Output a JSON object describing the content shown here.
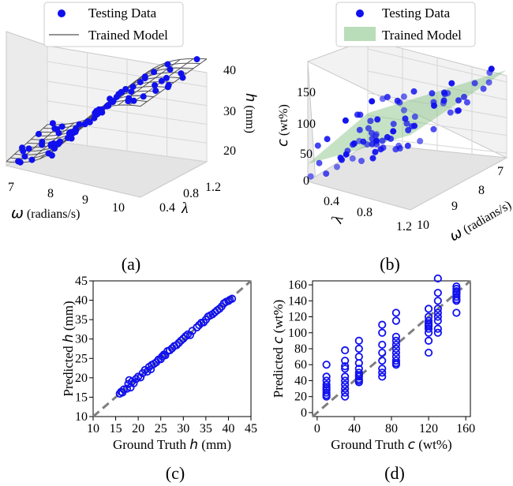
{
  "colors": {
    "points": "#1010ee",
    "model_line": "#555555",
    "model_surface": "#7fbf7f",
    "diagonal": "#7f7f7f",
    "pane": "#f2f2f2",
    "grid": "#d6d6d6"
  },
  "captions": [
    "(a)",
    "(b)",
    "(c)",
    "(d)"
  ],
  "chart_data": [
    {
      "id": "a",
      "type": "scatter",
      "projection": "3d",
      "legend": [
        "Testing Data",
        "Trained Model"
      ],
      "legend_placement": "top",
      "x_axis": {
        "symbol": "ω",
        "unit": " (radians/s)",
        "ticks": [
          "7",
          "8",
          "9",
          "10"
        ],
        "range": [
          7,
          10.5
        ]
      },
      "y_axis": {
        "symbol": "λ",
        "ticks": [
          "0.4",
          "0.8",
          "1.2"
        ],
        "range": [
          0.3,
          1.3
        ]
      },
      "z_axis": {
        "symbol": "h",
        "unit": " (mm)",
        "ticks": [
          "20",
          "30",
          "40"
        ],
        "range": [
          15,
          45
        ]
      },
      "grid": true,
      "model": "wireframe surface",
      "points_count": 80
    },
    {
      "id": "b",
      "type": "scatter",
      "projection": "3d",
      "legend": [
        "Testing Data",
        "Trained Model"
      ],
      "legend_placement": "top",
      "x_axis": {
        "symbol": "ω",
        "unit": " (radians/s)",
        "ticks": [
          "7",
          "8",
          "9",
          "10"
        ],
        "range": [
          6.5,
          10.5
        ]
      },
      "y_axis": {
        "symbol": "λ",
        "ticks": [
          "0.4",
          "0.8",
          "1.2"
        ],
        "range": [
          0.3,
          1.3
        ]
      },
      "z_axis": {
        "symbol": "c",
        "unit": " (wt%)",
        "ticks": [
          "0",
          "50",
          "100",
          "150"
        ],
        "range": [
          0,
          170
        ]
      },
      "grid": true,
      "model": "shaded surface",
      "points_count": 80
    },
    {
      "id": "c",
      "type": "scatter",
      "xlabel_prefix": "Ground Truth ",
      "xlabel_symbol": "h",
      "xlabel_unit": " (mm)",
      "ylabel_prefix": "Predicted ",
      "ylabel_symbol": "h",
      "ylabel_unit": " (mm)",
      "xlim": [
        10,
        45
      ],
      "ylim": [
        10,
        45
      ],
      "xticks": [
        10,
        15,
        20,
        25,
        30,
        35,
        40,
        45
      ],
      "yticks": [
        10,
        15,
        20,
        25,
        30,
        35,
        40,
        45
      ],
      "diagonal": true,
      "x": [
        15.9,
        16.2,
        16.5,
        16.8,
        17.5,
        17.8,
        18.0,
        18.3,
        18.6,
        19.0,
        19.5,
        20.0,
        20.5,
        21.0,
        21.5,
        22.0,
        22.4,
        22.8,
        23.0,
        23.5,
        24.0,
        24.5,
        25.0,
        25.3,
        25.7,
        26.0,
        26.5,
        27.0,
        27.5,
        28.0,
        28.5,
        29.0,
        29.5,
        30.0,
        30.5,
        31.0,
        31.5,
        32.0,
        33.0,
        33.5,
        34.0,
        34.5,
        35.0,
        35.5,
        36.0,
        36.5,
        37.0,
        37.5,
        38.0,
        38.5,
        39.0,
        39.5,
        40.0,
        40.3,
        40.8
      ],
      "y": [
        15.9,
        16.4,
        16.2,
        17.0,
        17.2,
        18.4,
        19.4,
        17.5,
        19.0,
        18.6,
        19.7,
        20.3,
        20.1,
        21.2,
        22.0,
        21.6,
        22.8,
        22.2,
        23.3,
        23.6,
        24.0,
        24.7,
        24.8,
        25.5,
        26.0,
        25.8,
        26.9,
        27.1,
        27.6,
        28.2,
        28.4,
        29.0,
        29.6,
        30.1,
        30.7,
        31.2,
        31.0,
        32.1,
        33.0,
        33.6,
        34.2,
        34.3,
        35.0,
        35.8,
        36.1,
        36.4,
        36.9,
        37.4,
        37.8,
        38.4,
        39.2,
        39.6,
        39.8,
        40.1,
        40.4
      ]
    },
    {
      "id": "d",
      "type": "scatter",
      "xlabel_prefix": "Ground Truth ",
      "xlabel_symbol": "c",
      "xlabel_unit": " (wt%)",
      "ylabel_prefix": "Predicted ",
      "ylabel_symbol": "c",
      "ylabel_unit": " (wt%)",
      "xlim": [
        -5,
        165
      ],
      "ylim": [
        -5,
        165
      ],
      "xticks": [
        0,
        40,
        80,
        120,
        160
      ],
      "yticks": [
        0,
        20,
        40,
        60,
        80,
        100,
        120,
        140,
        160
      ],
      "diagonal": true,
      "x": [
        10,
        10,
        10,
        10,
        10,
        10,
        10,
        10,
        10,
        10,
        30,
        30,
        30,
        30,
        30,
        30,
        30,
        30,
        30,
        30,
        45,
        45,
        45,
        45,
        45,
        45,
        45,
        45,
        45,
        45,
        45,
        70,
        70,
        70,
        70,
        70,
        70,
        70,
        70,
        85,
        85,
        85,
        85,
        85,
        85,
        85,
        85,
        85,
        85,
        85,
        120,
        120,
        120,
        120,
        120,
        120,
        120,
        120,
        120,
        120,
        130,
        130,
        130,
        130,
        130,
        130,
        130,
        130,
        130,
        150,
        150,
        150,
        150,
        150,
        150,
        150,
        150,
        150
      ],
      "y": [
        60,
        45,
        40,
        35,
        32,
        30,
        28,
        25,
        22,
        20,
        78,
        65,
        58,
        55,
        45,
        40,
        35,
        30,
        25,
        20,
        90,
        80,
        70,
        62,
        55,
        50,
        47,
        45,
        42,
        40,
        38,
        110,
        100,
        85,
        75,
        65,
        55,
        50,
        45,
        125,
        115,
        95,
        90,
        85,
        80,
        75,
        70,
        65,
        62,
        60,
        130,
        120,
        115,
        112,
        110,
        108,
        105,
        100,
        90,
        75,
        168,
        150,
        140,
        130,
        125,
        120,
        115,
        105,
        100,
        158,
        155,
        152,
        150,
        148,
        145,
        142,
        140,
        125
      ]
    }
  ]
}
